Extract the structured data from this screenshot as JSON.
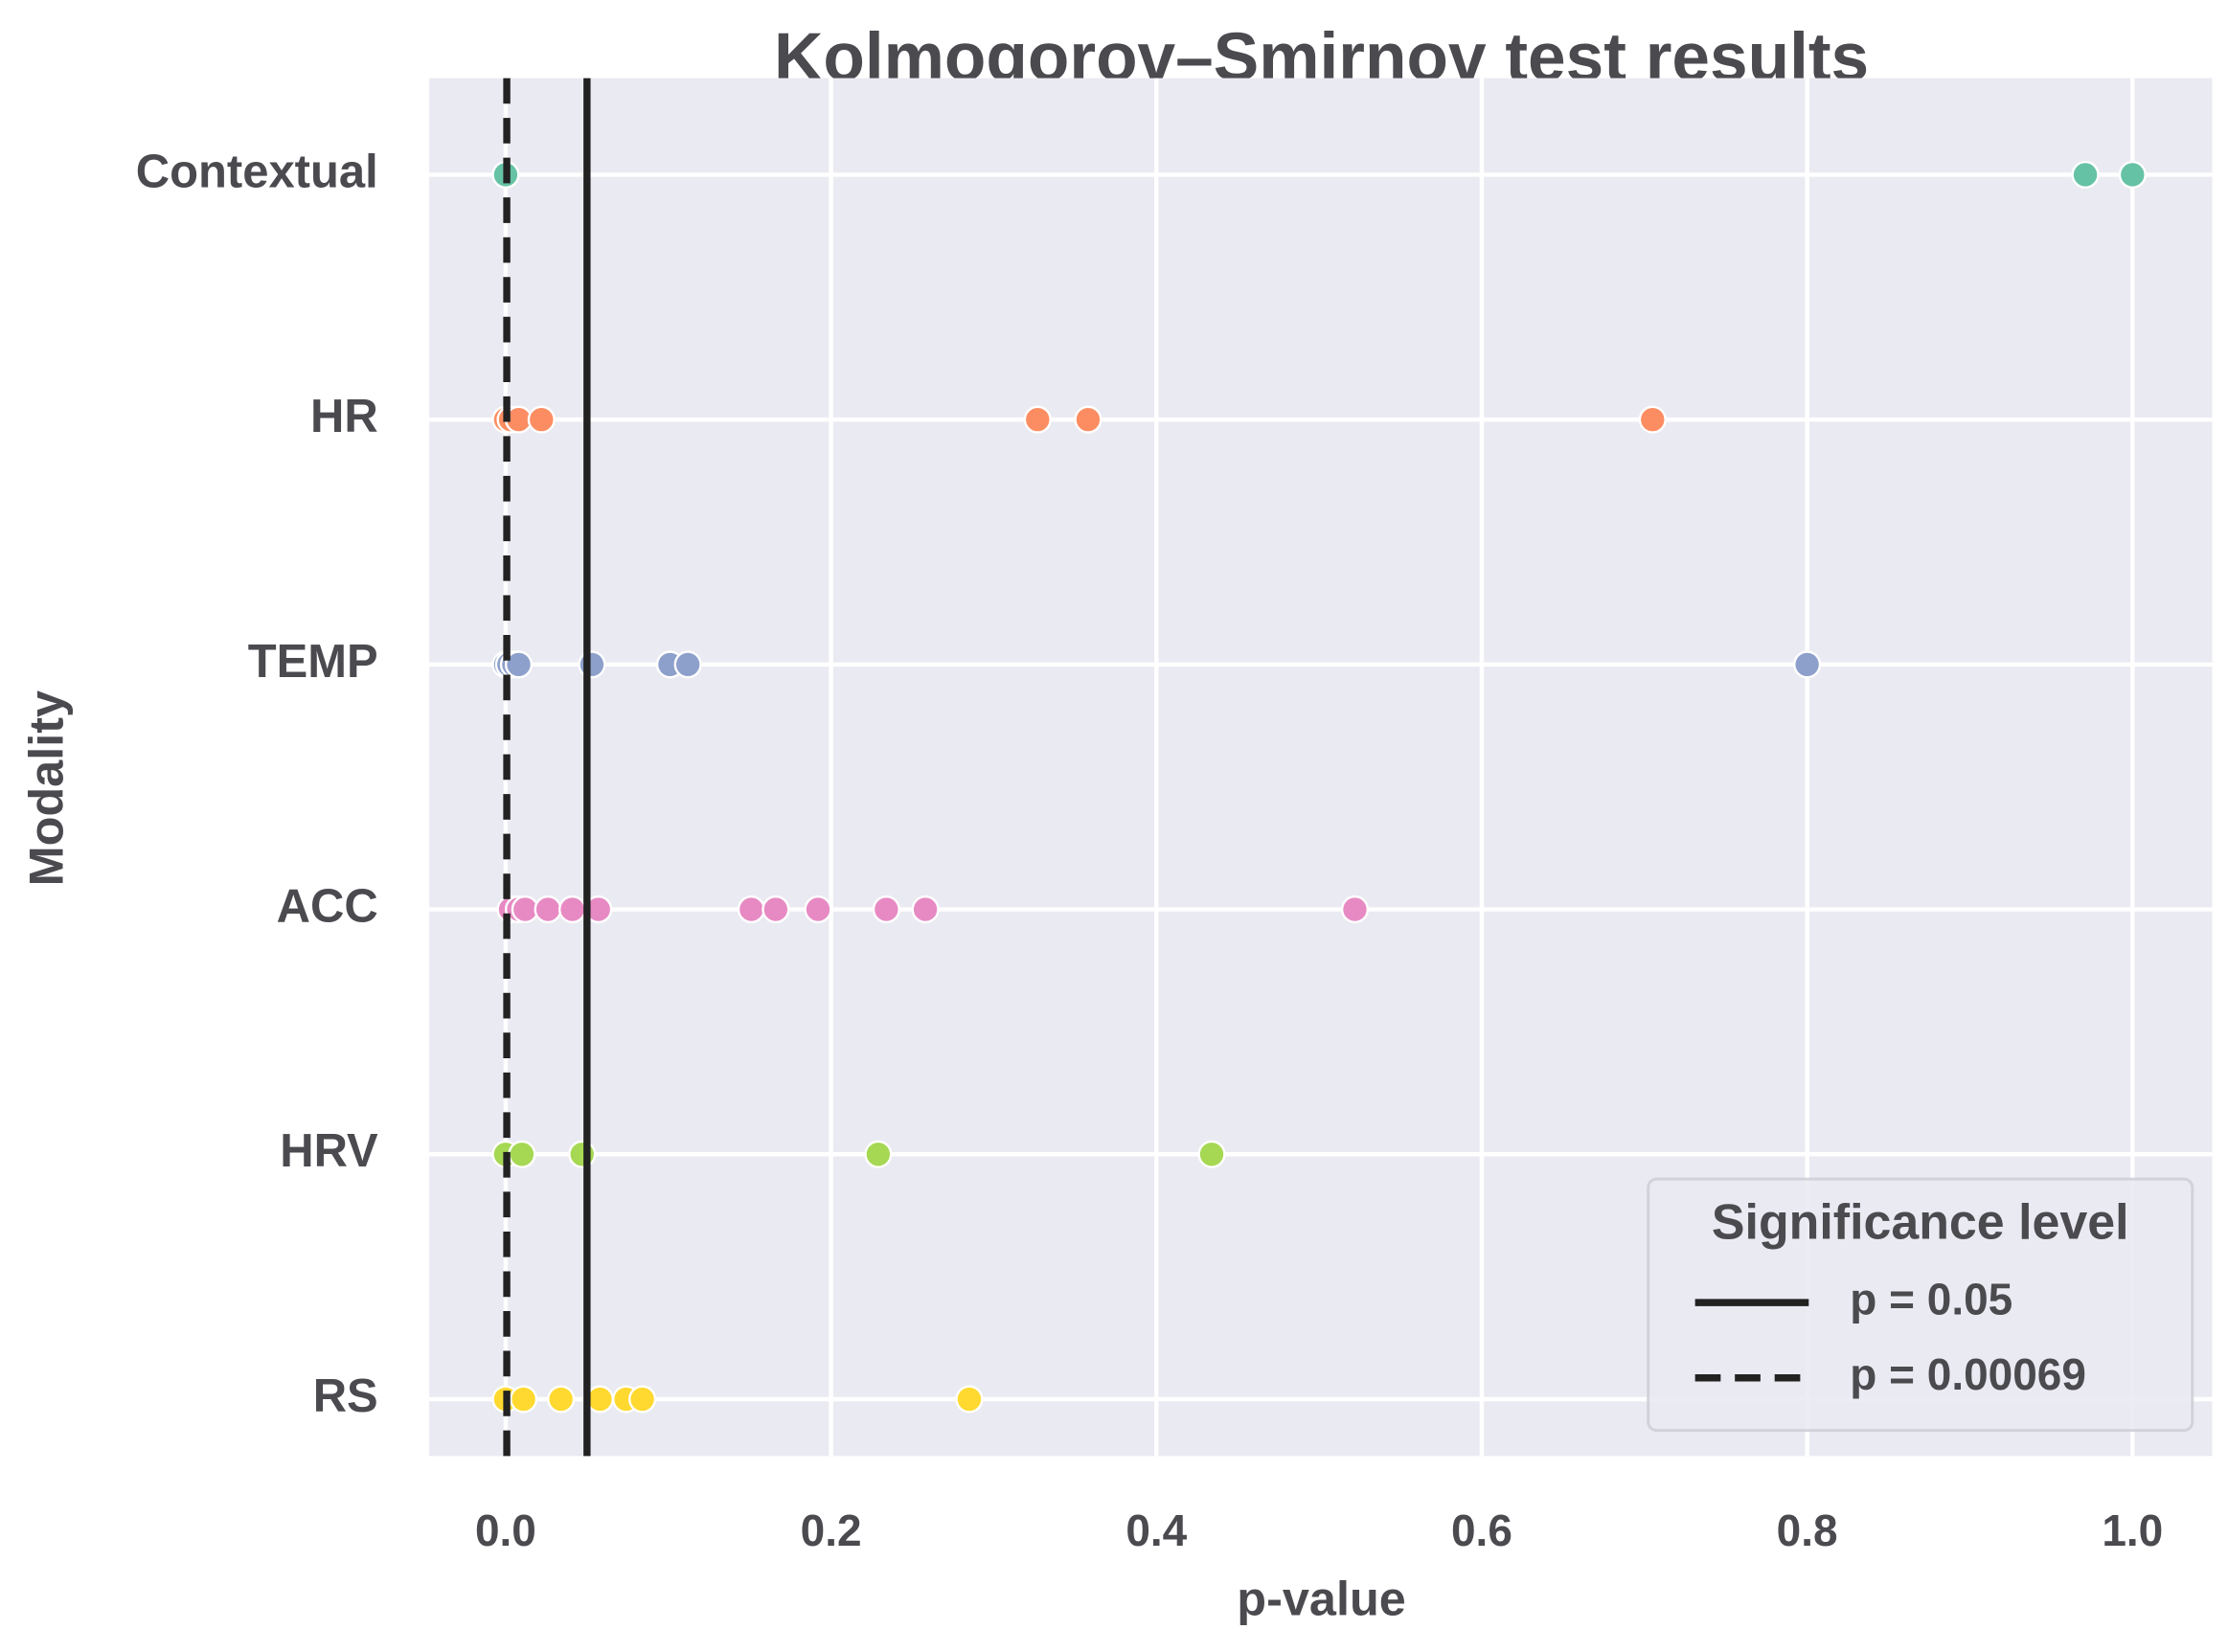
{
  "chart_data": {
    "type": "strip",
    "title": "Kolmogorov–Smirnov test results",
    "xlabel": "p-value",
    "ylabel": "Modality",
    "categories": [
      "Contextual",
      "HR",
      "TEMP",
      "ACC",
      "HRV",
      "RS"
    ],
    "colors": [
      "#66c2a5",
      "#fc8d62",
      "#8da0cb",
      "#e78ac3",
      "#a6d854",
      "#ffd92f"
    ],
    "values": [
      [
        0.0,
        0.971,
        1.0
      ],
      [
        0.0,
        0.003,
        0.008,
        0.022,
        0.327,
        0.358,
        0.705
      ],
      [
        0.0,
        0.002,
        0.005,
        0.008,
        0.053,
        0.101,
        0.112,
        0.8
      ],
      [
        0.003,
        0.008,
        0.012,
        0.026,
        0.041,
        0.057,
        0.151,
        0.166,
        0.192,
        0.234,
        0.258,
        0.522
      ],
      [
        0.0,
        0.01,
        0.047,
        0.229,
        0.434
      ],
      [
        0.0,
        0.011,
        0.034,
        0.058,
        0.074,
        0.084,
        0.285
      ]
    ],
    "xlim": [
      -0.047,
      1.049
    ],
    "xticks": [
      {
        "value": 0,
        "label": "0.0"
      },
      0.2,
      0.4,
      0.6,
      0.8,
      {
        "value": 1,
        "label": "1.0"
      }
    ],
    "grid": true,
    "reference_lines": [
      {
        "name": "p = 0.05",
        "value": 0.05,
        "style": "solid",
        "color": "#222222"
      },
      {
        "name": "p = 0.00069",
        "value": 0.00069,
        "style": "dashed",
        "color": "#222222"
      }
    ],
    "legend_title": "Significance level",
    "legend_position": "lower right"
  }
}
